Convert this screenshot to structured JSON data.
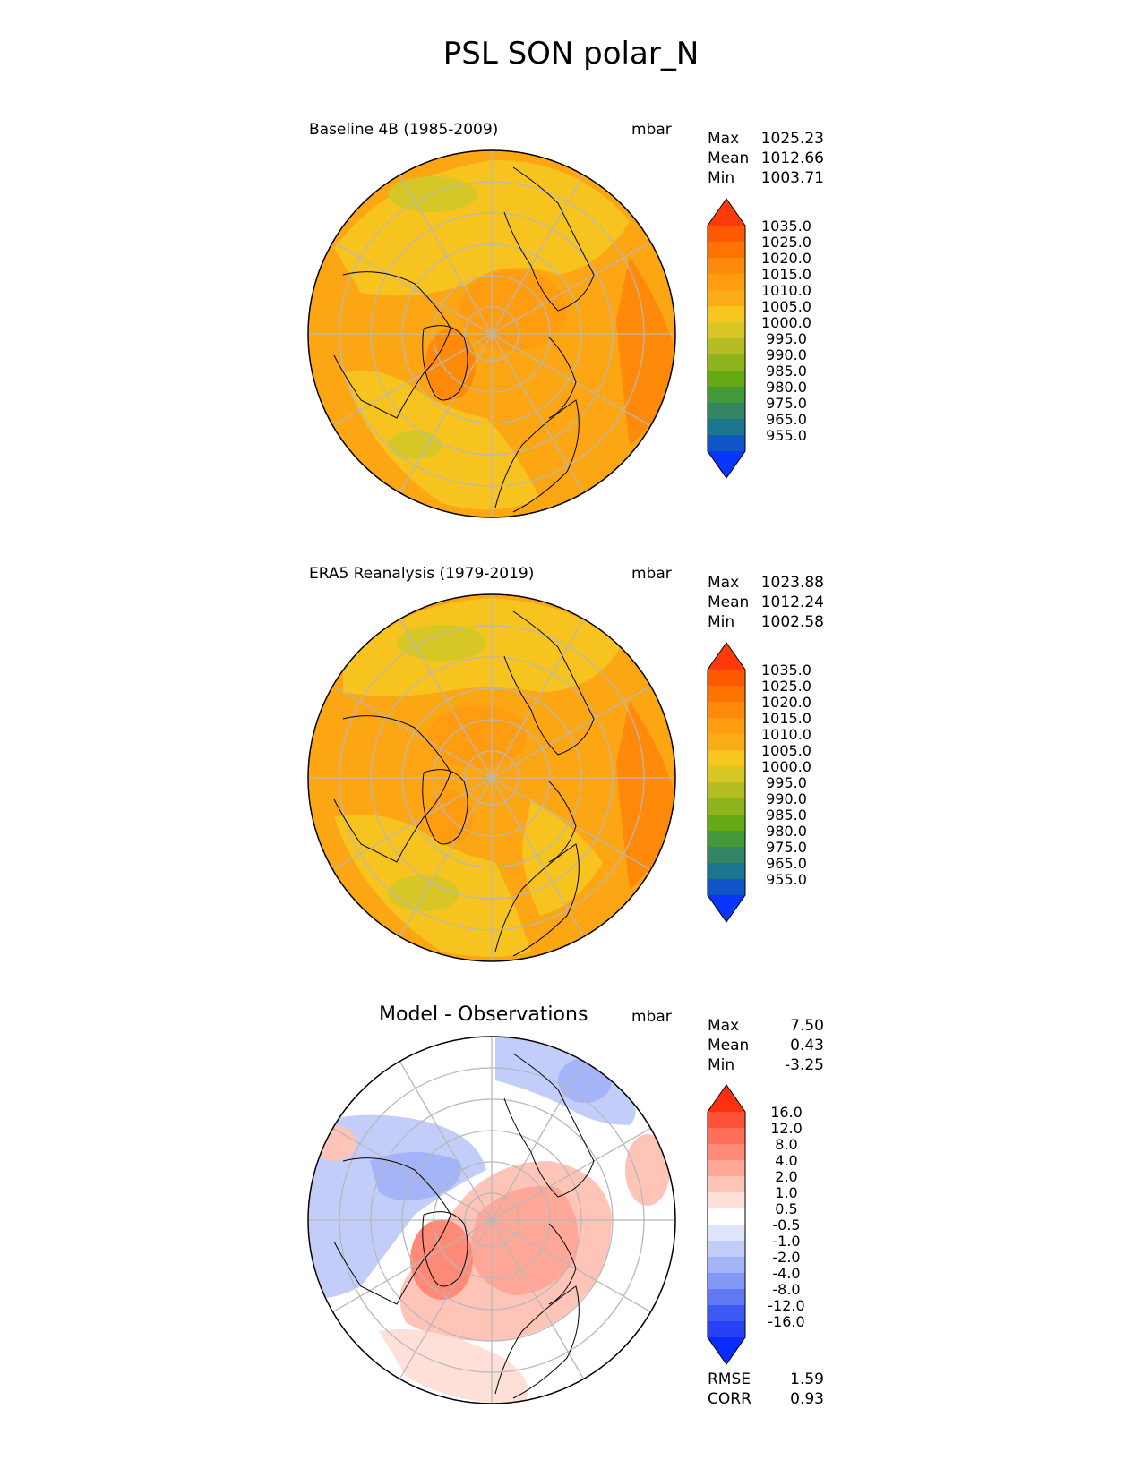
{
  "figure_title": "PSL SON polar_N",
  "panels": [
    {
      "title": "Baseline 4B (1985-2009)",
      "units": "mbar",
      "stats": [
        {
          "label": "Max",
          "value": "1025.23"
        },
        {
          "label": "Mean",
          "value": "1012.66"
        },
        {
          "label": "Min",
          "value": "1003.71"
        }
      ]
    },
    {
      "title": "ERA5 Reanalysis (1979-2019)",
      "units": "mbar",
      "stats": [
        {
          "label": "Max",
          "value": "1023.88"
        },
        {
          "label": "Mean",
          "value": "1012.24"
        },
        {
          "label": "Min",
          "value": "1002.58"
        }
      ]
    },
    {
      "title": "Model - Observations",
      "units": "mbar",
      "stats": [
        {
          "label": "Max",
          "value": "7.50"
        },
        {
          "label": "Mean",
          "value": "0.43"
        },
        {
          "label": "Min",
          "value": "-3.25"
        }
      ],
      "metrics": [
        {
          "label": "RMSE",
          "value": "1.59"
        },
        {
          "label": "CORR",
          "value": "0.93"
        }
      ]
    }
  ],
  "colorbars": {
    "absolute": {
      "ticks": [
        "1035.0",
        "1025.0",
        "1020.0",
        "1015.0",
        "1010.0",
        "1005.0",
        "1000.0",
        "995.0",
        "990.0",
        "985.0",
        "980.0",
        "975.0",
        "965.0",
        "955.0"
      ],
      "colors_top_to_bottom": [
        "#ff3a0a",
        "#ff5a00",
        "#ff7300",
        "#ff8a0a",
        "#ff9c10",
        "#fcab18",
        "#f5c61e",
        "#d8c623",
        "#b4bd22",
        "#8db41c",
        "#65a915",
        "#46993a",
        "#348563",
        "#1a7590",
        "#1055c8",
        "#0a35ff"
      ]
    },
    "difference": {
      "ticks": [
        "16.0",
        "12.0",
        "8.0",
        "4.0",
        "2.0",
        "1.0",
        "0.5",
        "-0.5",
        "-1.0",
        "-2.0",
        "-4.0",
        "-8.0",
        "-12.0",
        "-16.0"
      ],
      "colors_top_to_bottom": [
        "#ff3010",
        "#ff5038",
        "#ff6e58",
        "#ff8a78",
        "#ffa898",
        "#ffc4b8",
        "#ffe0d8",
        "#ffffff",
        "#dde4fb",
        "#c2cdfa",
        "#a4b4f8",
        "#8298f6",
        "#6078f4",
        "#3e58f4",
        "#2a40f6",
        "#0a2cff"
      ]
    }
  },
  "map": {
    "projection": "north polar stereographic",
    "graticule_color": "#b8b8b8",
    "coast_color": "#000000"
  }
}
